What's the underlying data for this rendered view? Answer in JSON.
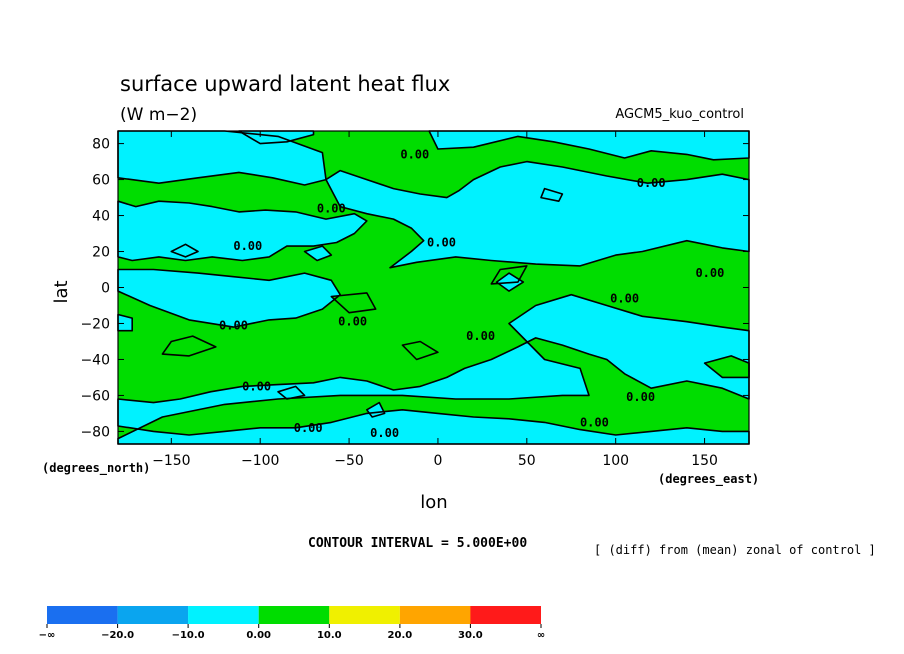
{
  "chart_data": {
    "type": "heatmap",
    "title": "surface upward latent heat flux",
    "units": "(W m−2)",
    "run_label": "AGCM5_kuo_control",
    "xlabel": "lon",
    "ylabel": "lat",
    "x_unit_label": "(degrees_east)",
    "y_unit_label": "(degrees_north)",
    "xlim": [
      -180,
      175
    ],
    "ylim": [
      -87,
      87
    ],
    "x_ticks": [
      -150,
      -100,
      -50,
      0,
      50,
      100,
      150
    ],
    "x_tick_labels": [
      "−150",
      "−100",
      "−50",
      "0",
      "50",
      "100",
      "150"
    ],
    "y_ticks": [
      -80,
      -60,
      -40,
      -20,
      0,
      20,
      40,
      60,
      80
    ],
    "y_tick_labels": [
      "−80",
      "−60",
      "−40",
      "−20",
      "0",
      "20",
      "40",
      "60",
      "80"
    ],
    "contour_interval_text": "CONTOUR INTERVAL = 5.000E+00",
    "note": "[ (diff) from (mean) zonal of control ]",
    "contour_labels": [
      {
        "text": "0.00",
        "lon": -13,
        "lat": 74
      },
      {
        "text": "0.00",
        "lon": 120,
        "lat": 58
      },
      {
        "text": "0.00",
        "lon": -60,
        "lat": 44
      },
      {
        "text": "0.00",
        "lon": 2,
        "lat": 25
      },
      {
        "text": "0.00",
        "lon": -107,
        "lat": 23
      },
      {
        "text": "0.00",
        "lon": 153,
        "lat": 8
      },
      {
        "text": "0.00",
        "lon": 105,
        "lat": -6
      },
      {
        "text": "0.00",
        "lon": -115,
        "lat": -21
      },
      {
        "text": "0.00",
        "lon": -48,
        "lat": -19
      },
      {
        "text": "0.00",
        "lon": 24,
        "lat": -27
      },
      {
        "text": "0.00",
        "lon": -102,
        "lat": -55
      },
      {
        "text": "0.00",
        "lon": 114,
        "lat": -61
      },
      {
        "text": "0.00",
        "lon": -73,
        "lat": -78
      },
      {
        "text": "0.00",
        "lon": -30,
        "lat": -81
      },
      {
        "text": "0.00",
        "lon": 88,
        "lat": -75
      }
    ],
    "colorbar": {
      "labels": [
        "−∞",
        "−20.0",
        "−10.0",
        "0.00",
        "10.0",
        "20.0",
        "30.0",
        "∞"
      ],
      "colors": [
        "#1a6ff0",
        "#0aa5ef",
        "#00f2ff",
        "#00dd00",
        "#f0f000",
        "#ffa500",
        "#ff1a1a"
      ]
    },
    "fill_colors": {
      "positive": "#00dd00",
      "negative": "#00f2ff"
    },
    "regions": {
      "negative": [
        [
          [
            -180,
            87
          ],
          [
            -180,
            61
          ],
          [
            -157,
            58
          ],
          [
            -135,
            61
          ],
          [
            -112,
            64
          ],
          [
            -93,
            61
          ],
          [
            -75,
            57
          ],
          [
            -63,
            60
          ],
          [
            -65,
            75
          ],
          [
            -90,
            84
          ],
          [
            -120,
            87
          ]
        ],
        [
          [
            -112,
            87
          ],
          [
            -100,
            80
          ],
          [
            -85,
            81
          ],
          [
            -70,
            85
          ],
          [
            -70,
            87
          ]
        ],
        [
          [
            -5,
            87
          ],
          [
            0,
            77
          ],
          [
            20,
            78
          ],
          [
            45,
            84
          ],
          [
            65,
            81
          ],
          [
            85,
            77
          ],
          [
            105,
            72
          ],
          [
            120,
            76
          ],
          [
            140,
            74
          ],
          [
            155,
            71
          ],
          [
            175,
            72
          ],
          [
            175,
            87
          ]
        ],
        [
          [
            -180,
            48
          ],
          [
            -170,
            45
          ],
          [
            -157,
            48
          ],
          [
            -140,
            47
          ],
          [
            -127,
            45
          ],
          [
            -112,
            42
          ],
          [
            -97,
            43
          ],
          [
            -80,
            42
          ],
          [
            -63,
            38
          ],
          [
            -47,
            41
          ],
          [
            -40,
            37
          ],
          [
            -47,
            30
          ],
          [
            -57,
            25
          ],
          [
            -70,
            23
          ],
          [
            -85,
            23
          ],
          [
            -95,
            17
          ],
          [
            -110,
            15
          ],
          [
            -127,
            17
          ],
          [
            -142,
            15
          ],
          [
            -157,
            17
          ],
          [
            -172,
            15
          ],
          [
            -180,
            17
          ]
        ],
        [
          [
            -180,
            10
          ],
          [
            -180,
            -2
          ],
          [
            -162,
            -10
          ],
          [
            -140,
            -18
          ],
          [
            -115,
            -22
          ],
          [
            -95,
            -18
          ],
          [
            -80,
            -17
          ],
          [
            -65,
            -12
          ],
          [
            -55,
            -4
          ],
          [
            -60,
            4
          ],
          [
            -75,
            8
          ],
          [
            -95,
            4
          ],
          [
            -115,
            6
          ],
          [
            -135,
            8
          ],
          [
            -160,
            10
          ]
        ],
        [
          [
            -27,
            11
          ],
          [
            -12,
            14
          ],
          [
            10,
            17
          ],
          [
            30,
            15
          ],
          [
            55,
            13
          ],
          [
            80,
            12
          ],
          [
            100,
            18
          ],
          [
            115,
            20
          ],
          [
            140,
            26
          ],
          [
            160,
            22
          ],
          [
            175,
            20
          ],
          [
            175,
            60
          ],
          [
            160,
            63
          ],
          [
            140,
            60
          ],
          [
            118,
            58
          ],
          [
            95,
            62
          ],
          [
            70,
            67
          ],
          [
            50,
            70
          ],
          [
            35,
            67
          ],
          [
            20,
            60
          ],
          [
            12,
            54
          ],
          [
            5,
            50
          ],
          [
            -10,
            52
          ],
          [
            -25,
            55
          ],
          [
            -40,
            60
          ],
          [
            -55,
            65
          ],
          [
            -63,
            60
          ],
          [
            -55,
            45
          ],
          [
            -40,
            41
          ],
          [
            -25,
            38
          ],
          [
            -15,
            33
          ],
          [
            -8,
            26
          ],
          [
            -15,
            20
          ],
          [
            -27,
            11
          ]
        ],
        [
          [
            75,
            -4
          ],
          [
            95,
            -10
          ],
          [
            115,
            -16
          ],
          [
            140,
            -19
          ],
          [
            160,
            -22
          ],
          [
            175,
            -24
          ],
          [
            175,
            -62
          ],
          [
            160,
            -56
          ],
          [
            140,
            -52
          ],
          [
            120,
            -56
          ],
          [
            105,
            -48
          ],
          [
            95,
            -40
          ],
          [
            85,
            -37
          ],
          [
            70,
            -32
          ],
          [
            55,
            -28
          ],
          [
            45,
            -33
          ],
          [
            30,
            -40
          ],
          [
            15,
            -45
          ],
          [
            5,
            -50
          ],
          [
            -10,
            -55
          ],
          [
            -25,
            -57
          ],
          [
            -40,
            -52
          ],
          [
            -55,
            -50
          ],
          [
            -70,
            -53
          ],
          [
            -90,
            -54
          ],
          [
            -110,
            -55
          ],
          [
            -128,
            -58
          ],
          [
            -145,
            -62
          ],
          [
            -160,
            -64
          ],
          [
            -180,
            -62
          ],
          [
            -180,
            -77
          ],
          [
            -160,
            -80
          ],
          [
            -140,
            -82
          ],
          [
            -120,
            -80
          ],
          [
            -100,
            -78
          ],
          [
            -80,
            -78
          ],
          [
            -60,
            -75
          ],
          [
            -40,
            -70
          ],
          [
            -20,
            -68
          ],
          [
            0,
            -70
          ],
          [
            20,
            -72
          ],
          [
            40,
            -73
          ],
          [
            60,
            -75
          ],
          [
            80,
            -79
          ],
          [
            100,
            -82
          ],
          [
            120,
            -80
          ],
          [
            140,
            -78
          ],
          [
            160,
            -80
          ],
          [
            175,
            -80
          ],
          [
            175,
            -87
          ],
          [
            -180,
            -87
          ],
          [
            -180,
            -84
          ],
          [
            -155,
            -72
          ],
          [
            -120,
            -65
          ],
          [
            -90,
            -62
          ],
          [
            -55,
            -60
          ],
          [
            -20,
            -60
          ],
          [
            10,
            -62
          ],
          [
            40,
            -62
          ],
          [
            70,
            -60
          ],
          [
            85,
            -60
          ],
          [
            80,
            -45
          ],
          [
            60,
            -40
          ],
          [
            40,
            -20
          ],
          [
            55,
            -10
          ]
        ]
      ],
      "positive": [
        [
          [
            -150,
            -30
          ],
          [
            -138,
            -27
          ],
          [
            -125,
            -33
          ],
          [
            -140,
            -38
          ],
          [
            -155,
            -37
          ]
        ],
        [
          [
            -20,
            -32
          ],
          [
            -10,
            -30
          ],
          [
            0,
            -36
          ],
          [
            -12,
            -40
          ]
        ],
        [
          [
            35,
            10
          ],
          [
            50,
            12
          ],
          [
            45,
            3
          ],
          [
            30,
            2
          ]
        ],
        [
          [
            -60,
            -5
          ],
          [
            -40,
            -3
          ],
          [
            -35,
            -12
          ],
          [
            -50,
            -14
          ]
        ],
        [
          [
            150,
            -42
          ],
          [
            165,
            -38
          ],
          [
            175,
            -42
          ],
          [
            175,
            -50
          ],
          [
            160,
            -50
          ]
        ]
      ],
      "negative_small": [
        [
          [
            -150,
            20
          ],
          [
            -142,
            24
          ],
          [
            -135,
            20
          ],
          [
            -142,
            17
          ]
        ],
        [
          [
            -75,
            20
          ],
          [
            -65,
            23
          ],
          [
            -60,
            18
          ],
          [
            -68,
            15
          ]
        ],
        [
          [
            40,
            8
          ],
          [
            48,
            3
          ],
          [
            40,
            -2
          ],
          [
            33,
            3
          ]
        ],
        [
          [
            -90,
            -58
          ],
          [
            -80,
            -55
          ],
          [
            -75,
            -60
          ],
          [
            -85,
            -62
          ]
        ],
        [
          [
            -40,
            -68
          ],
          [
            -33,
            -64
          ],
          [
            -30,
            -70
          ],
          [
            -37,
            -72
          ]
        ],
        [
          [
            -180,
            -15
          ],
          [
            -172,
            -17
          ],
          [
            -172,
            -24
          ],
          [
            -180,
            -24
          ]
        ],
        [
          [
            60,
            55
          ],
          [
            70,
            52
          ],
          [
            68,
            48
          ],
          [
            58,
            50
          ]
        ]
      ]
    }
  }
}
